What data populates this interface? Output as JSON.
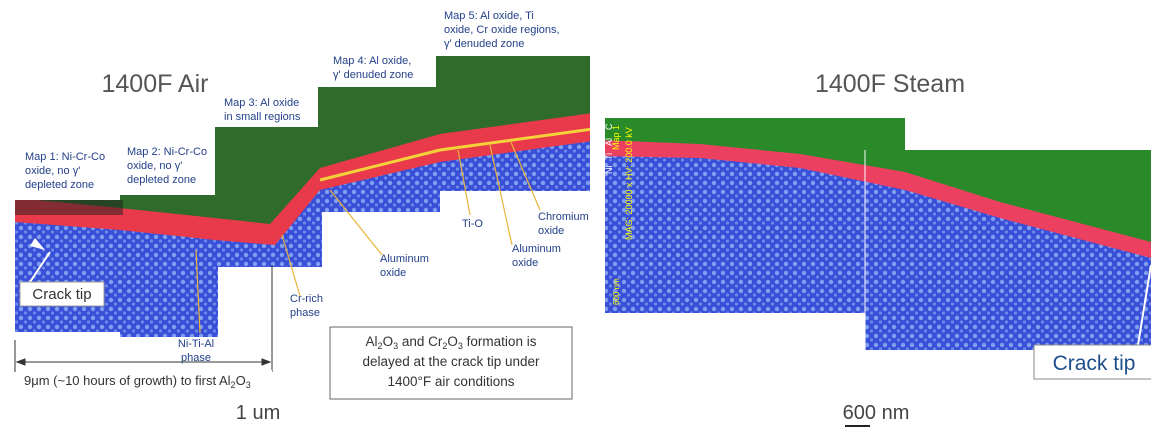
{
  "left": {
    "title": "1400F Air",
    "maps": [
      [
        "Map 1: Ni-Cr-Co",
        "oxide, no γ'",
        "depleted zone"
      ],
      [
        "Map 2: Ni-Cr-Co",
        "oxide, no γ'",
        "depleted zone"
      ],
      [
        "Map 3: Al oxide",
        "in small regions"
      ],
      [
        "Map 4: Al oxide,",
        "γ' denuded zone"
      ],
      [
        "Map 5: Al oxide, Ti",
        "oxide, Cr oxide regions,",
        "γ' denuded zone"
      ]
    ],
    "crack_tip": "Crack tip",
    "labels": {
      "ni_ti_al": [
        "Ni-Ti-Al",
        "phase"
      ],
      "cr_rich": [
        "Cr-rich",
        "phase"
      ],
      "aluminum_oxide_1": [
        "Aluminum",
        "oxide"
      ],
      "ti_o": "Ti-O",
      "aluminum_oxide_2": [
        "Aluminum",
        "oxide"
      ],
      "chromium_oxide": [
        "Chromium",
        "oxide"
      ]
    },
    "distance": [
      "9μm (~10 hours of growth) to first Al",
      "2",
      "O",
      "3"
    ],
    "note": [
      [
        "Al",
        "2",
        "O",
        "3",
        " and Cr",
        "2",
        "O",
        "3",
        " formation is"
      ],
      [
        "delayed at the crack tip under"
      ],
      [
        "1400°F air conditions"
      ]
    ],
    "scale": "1 um"
  },
  "right": {
    "title": "1400F Steam",
    "map_label": "Map 1",
    "mag": "MAG: 20000 x HV: 200.0 kV",
    "bar": "600 nm",
    "elements": [
      "C",
      "Al",
      "Ti",
      "Ni"
    ],
    "crack_tip": "Crack tip",
    "scale": "600 nm"
  }
}
